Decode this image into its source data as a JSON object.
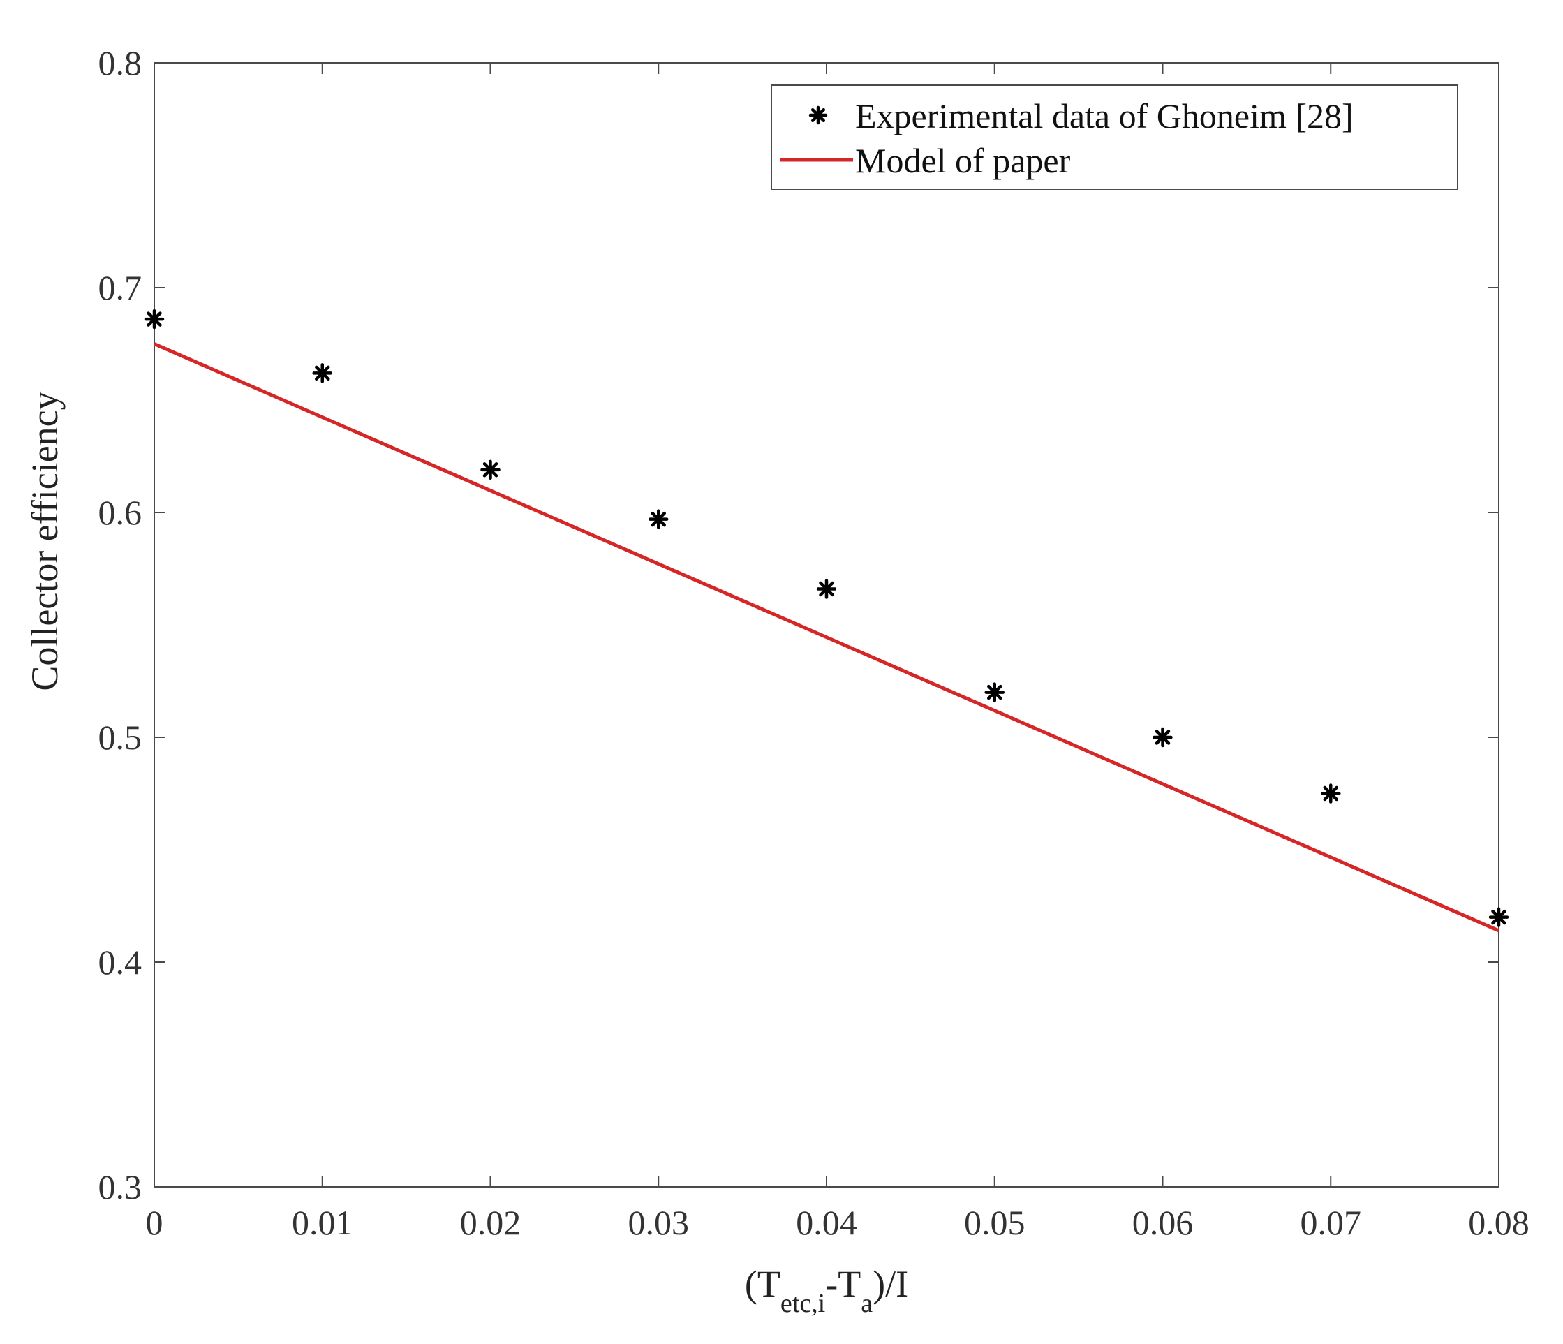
{
  "chart_data": {
    "type": "scatter",
    "xlim": [
      0,
      0.08
    ],
    "ylim": [
      0.3,
      0.8
    ],
    "x_ticks": [
      0,
      0.01,
      0.02,
      0.03,
      0.04,
      0.05,
      0.06,
      0.07,
      0.08
    ],
    "y_ticks": [
      0.3,
      0.4,
      0.5,
      0.6,
      0.7,
      0.8
    ],
    "x_tick_labels": [
      "0",
      "0.01",
      "0.02",
      "0.03",
      "0.04",
      "0.05",
      "0.06",
      "0.07",
      "0.08"
    ],
    "y_tick_labels": [
      "0.3",
      "0.4",
      "0.5",
      "0.6",
      "0.7",
      "0.8"
    ],
    "ylabel": "Collector efficiency",
    "xlabel": {
      "open": "(T",
      "sub1": "etc,i",
      "mid": "-T",
      "sub2": "a",
      "close": ")/I"
    },
    "grid": false,
    "legend_position": "top-right",
    "series": [
      {
        "name": "Experimental data of Ghoneim [28]",
        "type": "scatter",
        "marker": "asterisk",
        "color": "#000000",
        "x": [
          0,
          0.01,
          0.02,
          0.03,
          0.04,
          0.05,
          0.06,
          0.07,
          0.08
        ],
        "y": [
          0.686,
          0.662,
          0.619,
          0.597,
          0.566,
          0.52,
          0.5,
          0.475,
          0.42
        ]
      },
      {
        "name": "Model of paper",
        "type": "line",
        "color": "#d62728",
        "x": [
          0,
          0.08
        ],
        "y": [
          0.675,
          0.414
        ]
      }
    ]
  }
}
